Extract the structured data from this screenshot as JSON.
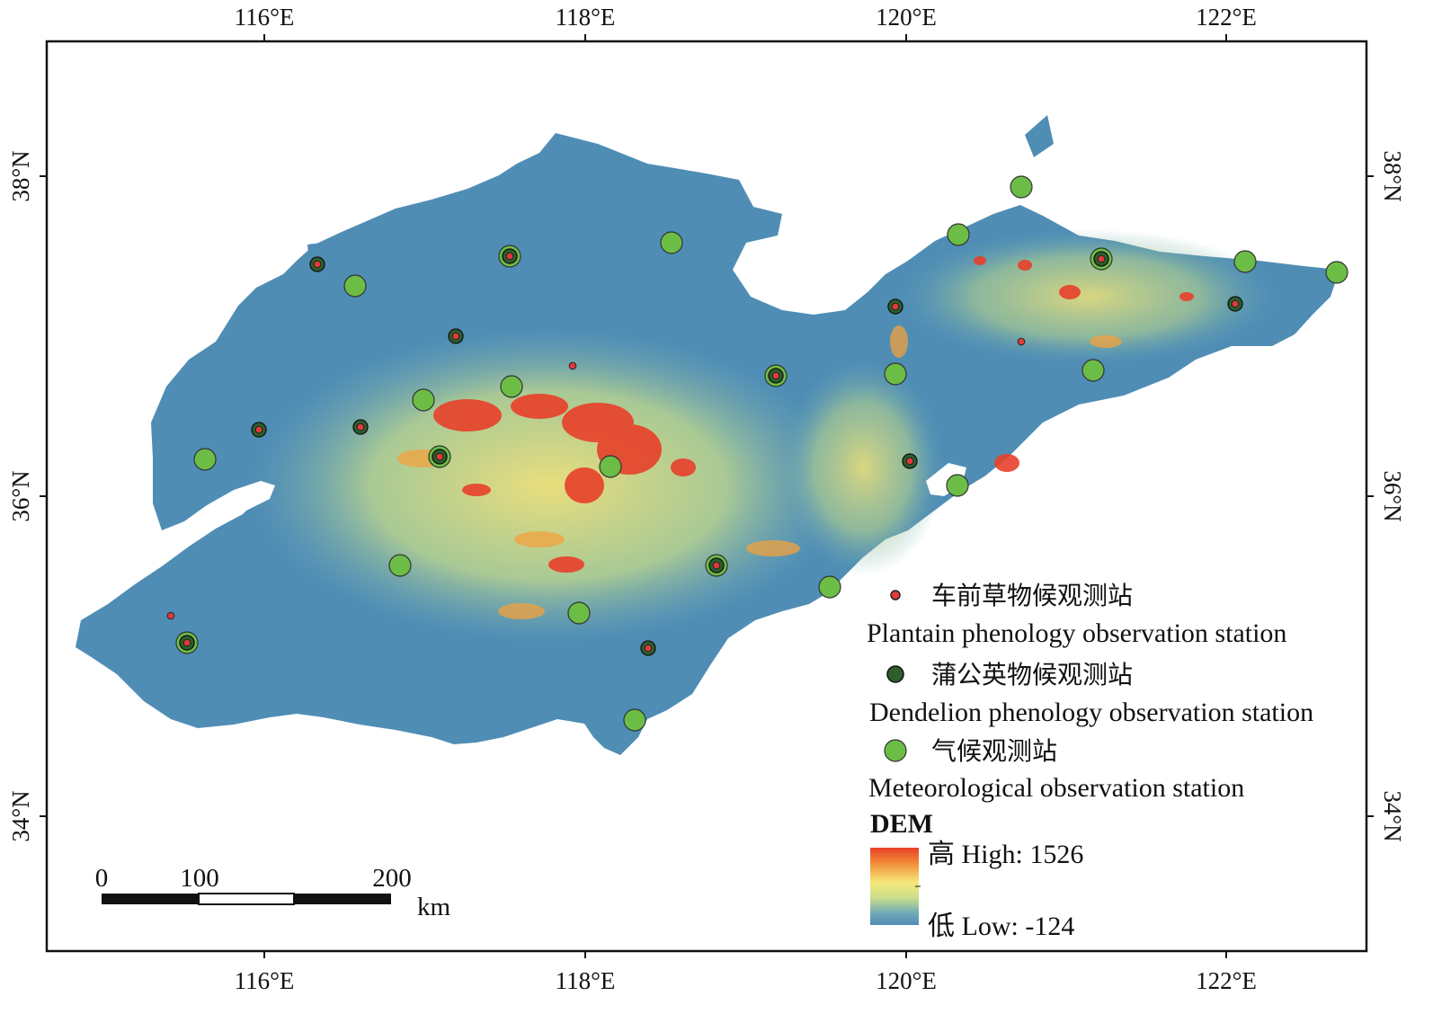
{
  "axes": {
    "top": [
      "116°E",
      "118°E",
      "120°E",
      "122°E"
    ],
    "bottom": [
      "116°E",
      "118°E",
      "120°E",
      "122°E"
    ],
    "left": [
      "38°N",
      "36°N",
      "34°N"
    ],
    "right": [
      "38°N",
      "36°N",
      "34°N"
    ]
  },
  "legend": {
    "plantain_cn": "车前草物候观测站",
    "plantain_en": "Plantain phenology observation station",
    "dandelion_cn": "蒲公英物候观测站",
    "dandelion_en": "Dendelion phenology observation station",
    "meteo_cn": "气候观测站",
    "meteo_en": "Meteorological observation station"
  },
  "dem": {
    "title": "DEM",
    "high_label": "高 High: 1526",
    "low_label": "低 Low: -124",
    "colors": [
      "#e8402a",
      "#f28c38",
      "#f5e87a",
      "#c9de8a",
      "#6fa9b8",
      "#4f8db5"
    ]
  },
  "scale": {
    "labels": [
      "0",
      "100",
      "200"
    ],
    "unit": "km"
  },
  "colors": {
    "sea": "#ffffff",
    "low_terrain": "#4f8db5",
    "meteo_station": "#6cbd45",
    "dandelion_station": "#2d5e2b",
    "plantain_station": "#e23a3a"
  }
}
